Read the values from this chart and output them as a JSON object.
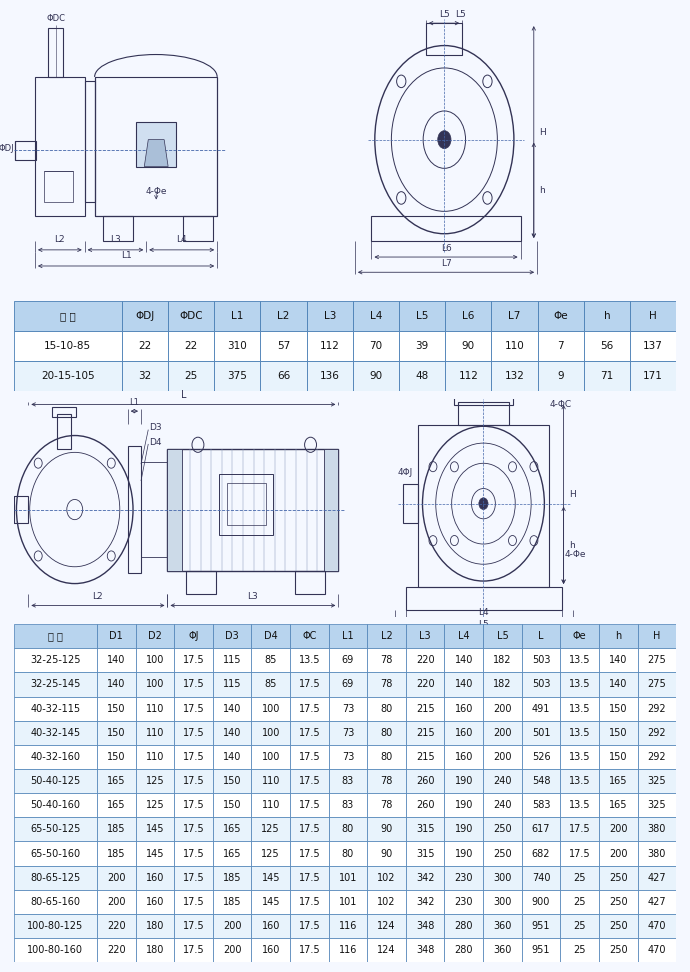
{
  "table1_headers": [
    "型 号",
    "ΦDJ",
    "ΦDC",
    "L1",
    "L2",
    "L3",
    "L4",
    "L5",
    "L6",
    "L7",
    "Φe",
    "h",
    "H"
  ],
  "table1_data": [
    [
      "15-10-85",
      "22",
      "22",
      "310",
      "57",
      "112",
      "70",
      "39",
      "90",
      "110",
      "7",
      "56",
      "137"
    ],
    [
      "20-15-105",
      "32",
      "25",
      "375",
      "66",
      "136",
      "90",
      "48",
      "112",
      "132",
      "9",
      "71",
      "171"
    ]
  ],
  "table2_headers": [
    "型 号",
    "D1",
    "D2",
    "ΦJ",
    "D3",
    "D4",
    "ΦC",
    "L1",
    "L2",
    "L3",
    "L4",
    "L5",
    "L",
    "Φe",
    "h",
    "H"
  ],
  "table2_data": [
    [
      "32-25-125",
      "140",
      "100",
      "17.5",
      "115",
      "85",
      "13.5",
      "69",
      "78",
      "220",
      "140",
      "182",
      "503",
      "13.5",
      "140",
      "275"
    ],
    [
      "32-25-145",
      "140",
      "100",
      "17.5",
      "115",
      "85",
      "17.5",
      "69",
      "78",
      "220",
      "140",
      "182",
      "503",
      "13.5",
      "140",
      "275"
    ],
    [
      "40-32-115",
      "150",
      "110",
      "17.5",
      "140",
      "100",
      "17.5",
      "73",
      "80",
      "215",
      "160",
      "200",
      "491",
      "13.5",
      "150",
      "292"
    ],
    [
      "40-32-145",
      "150",
      "110",
      "17.5",
      "140",
      "100",
      "17.5",
      "73",
      "80",
      "215",
      "160",
      "200",
      "501",
      "13.5",
      "150",
      "292"
    ],
    [
      "40-32-160",
      "150",
      "110",
      "17.5",
      "140",
      "100",
      "17.5",
      "73",
      "80",
      "215",
      "160",
      "200",
      "526",
      "13.5",
      "150",
      "292"
    ],
    [
      "50-40-125",
      "165",
      "125",
      "17.5",
      "150",
      "110",
      "17.5",
      "83",
      "78",
      "260",
      "190",
      "240",
      "548",
      "13.5",
      "165",
      "325"
    ],
    [
      "50-40-160",
      "165",
      "125",
      "17.5",
      "150",
      "110",
      "17.5",
      "83",
      "78",
      "260",
      "190",
      "240",
      "583",
      "13.5",
      "165",
      "325"
    ],
    [
      "65-50-125",
      "185",
      "145",
      "17.5",
      "165",
      "125",
      "17.5",
      "80",
      "90",
      "315",
      "190",
      "250",
      "617",
      "17.5",
      "200",
      "380"
    ],
    [
      "65-50-160",
      "185",
      "145",
      "17.5",
      "165",
      "125",
      "17.5",
      "80",
      "90",
      "315",
      "190",
      "250",
      "682",
      "17.5",
      "200",
      "380"
    ],
    [
      "80-65-125",
      "200",
      "160",
      "17.5",
      "185",
      "145",
      "17.5",
      "101",
      "102",
      "342",
      "230",
      "300",
      "740",
      "25",
      "250",
      "427"
    ],
    [
      "80-65-160",
      "200",
      "160",
      "17.5",
      "185",
      "145",
      "17.5",
      "101",
      "102",
      "342",
      "230",
      "300",
      "900",
      "25",
      "250",
      "427"
    ],
    [
      "100-80-125",
      "220",
      "180",
      "17.5",
      "200",
      "160",
      "17.5",
      "116",
      "124",
      "348",
      "280",
      "360",
      "951",
      "25",
      "250",
      "470"
    ],
    [
      "100-80-160",
      "220",
      "180",
      "17.5",
      "200",
      "160",
      "17.5",
      "116",
      "124",
      "348",
      "280",
      "360",
      "951",
      "25",
      "250",
      "470"
    ]
  ],
  "bg_white": "#ffffff",
  "bg_light_blue": "#ddeeff",
  "header_bg": "#b8d4ee",
  "row_odd": "#ffffff",
  "row_even": "#e8f3fc",
  "border_color": "#4a7fb5",
  "line_color": "#333355",
  "dim_color": "#333355",
  "dash_color": "#4466aa",
  "text_color": "#111111"
}
